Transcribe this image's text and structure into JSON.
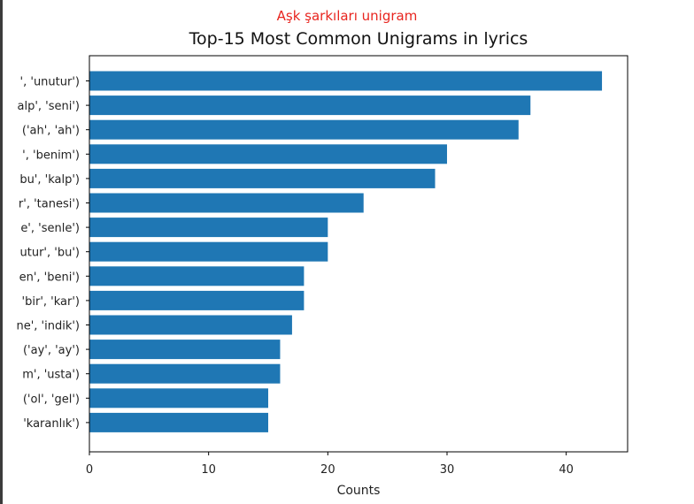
{
  "caption": "Aşk şarkıları unigram",
  "chart_data": {
    "type": "bar",
    "orientation": "horizontal",
    "title": "Top-15 Most Common Unigrams in lyrics",
    "xlabel": "Counts",
    "ylabel": "",
    "xlim": [
      0,
      45.15
    ],
    "xticks": [
      0,
      10,
      20,
      30,
      40
    ],
    "color": "#1f77b4",
    "categories": [
      "', 'unutur')",
      "alp', 'seni')",
      "('ah', 'ah')",
      "', 'benim')",
      "bu', 'kalp')",
      "r', 'tanesi')",
      "e', 'senle')",
      "utur', 'bu')",
      "en', 'beni')",
      "'bir', 'kar')",
      "ne', 'indik')",
      "('ay', 'ay')",
      "m', 'usta')",
      "('ol', 'gel')",
      "'karanlık')"
    ],
    "values": [
      43,
      37,
      36,
      30,
      29,
      23,
      20,
      20,
      18,
      18,
      17,
      16,
      16,
      15,
      15
    ]
  }
}
